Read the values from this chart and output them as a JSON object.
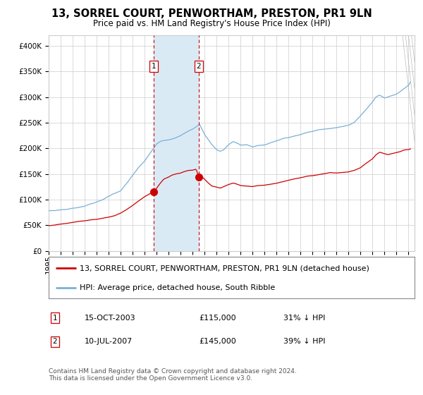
{
  "title": "13, SORREL COURT, PENWORTHAM, PRESTON, PR1 9LN",
  "subtitle": "Price paid vs. HM Land Registry's House Price Index (HPI)",
  "legend_red": "13, SORREL COURT, PENWORTHAM, PRESTON, PR1 9LN (detached house)",
  "legend_blue": "HPI: Average price, detached house, South Ribble",
  "transaction1_price": 115000,
  "transaction1_note": "15-OCT-2003",
  "transaction1_pct": "31% ↓ HPI",
  "transaction2_price": 145000,
  "transaction2_note": "10-JUL-2007",
  "transaction2_pct": "39% ↓ HPI",
  "red_color": "#cc0000",
  "blue_color": "#7ab0d4",
  "shading_color": "#daeaf5",
  "grid_color": "#cccccc",
  "bg_color": "#ffffff",
  "ylim": [
    0,
    420000
  ],
  "yticks": [
    0,
    50000,
    100000,
    150000,
    200000,
    250000,
    300000,
    350000,
    400000
  ],
  "footnote": "Contains HM Land Registry data © Crown copyright and database right 2024.\nThis data is licensed under the Open Government Licence v3.0.",
  "title_fontsize": 10.5,
  "subtitle_fontsize": 8.5,
  "tick_fontsize": 7.5,
  "legend_fontsize": 8,
  "footnote_fontsize": 6.5,
  "t1_year": 2003,
  "t1_month": 10,
  "t2_year": 2007,
  "t2_month": 7,
  "hpi_keypoints": [
    [
      1995.0,
      78000
    ],
    [
      1995.5,
      78500
    ],
    [
      1996.0,
      80000
    ],
    [
      1996.5,
      81000
    ],
    [
      1997.0,
      83000
    ],
    [
      1997.5,
      85000
    ],
    [
      1998.0,
      88000
    ],
    [
      1998.5,
      92000
    ],
    [
      1999.0,
      96000
    ],
    [
      1999.5,
      100000
    ],
    [
      2000.0,
      107000
    ],
    [
      2000.5,
      113000
    ],
    [
      2001.0,
      118000
    ],
    [
      2001.5,
      132000
    ],
    [
      2002.0,
      148000
    ],
    [
      2002.5,
      163000
    ],
    [
      2003.0,
      175000
    ],
    [
      2003.5,
      192000
    ],
    [
      2004.0,
      208000
    ],
    [
      2004.3,
      213000
    ],
    [
      2004.6,
      215000
    ],
    [
      2005.0,
      216000
    ],
    [
      2005.5,
      219000
    ],
    [
      2006.0,
      224000
    ],
    [
      2006.5,
      232000
    ],
    [
      2007.0,
      238000
    ],
    [
      2007.3,
      243000
    ],
    [
      2007.58,
      248000
    ],
    [
      2007.75,
      240000
    ],
    [
      2008.0,
      228000
    ],
    [
      2008.3,
      218000
    ],
    [
      2008.6,
      208000
    ],
    [
      2009.0,
      198000
    ],
    [
      2009.3,
      195000
    ],
    [
      2009.6,
      198000
    ],
    [
      2010.0,
      208000
    ],
    [
      2010.4,
      214000
    ],
    [
      2010.8,
      210000
    ],
    [
      2011.0,
      207000
    ],
    [
      2011.5,
      208000
    ],
    [
      2012.0,
      204000
    ],
    [
      2012.5,
      207000
    ],
    [
      2013.0,
      208000
    ],
    [
      2013.5,
      212000
    ],
    [
      2014.0,
      216000
    ],
    [
      2014.5,
      220000
    ],
    [
      2015.0,
      222000
    ],
    [
      2015.5,
      225000
    ],
    [
      2016.0,
      228000
    ],
    [
      2016.5,
      232000
    ],
    [
      2017.0,
      234000
    ],
    [
      2017.5,
      237000
    ],
    [
      2018.0,
      238000
    ],
    [
      2018.5,
      240000
    ],
    [
      2019.0,
      242000
    ],
    [
      2019.5,
      244000
    ],
    [
      2020.0,
      246000
    ],
    [
      2020.5,
      252000
    ],
    [
      2021.0,
      265000
    ],
    [
      2021.5,
      278000
    ],
    [
      2022.0,
      292000
    ],
    [
      2022.3,
      302000
    ],
    [
      2022.6,
      305000
    ],
    [
      2023.0,
      300000
    ],
    [
      2023.3,
      302000
    ],
    [
      2023.6,
      305000
    ],
    [
      2024.0,
      308000
    ],
    [
      2024.3,
      312000
    ],
    [
      2024.6,
      318000
    ],
    [
      2025.0,
      325000
    ],
    [
      2025.25,
      335000
    ]
  ],
  "red_keypoints": [
    [
      1995.0,
      49000
    ],
    [
      1995.5,
      50000
    ],
    [
      1996.0,
      52000
    ],
    [
      1996.5,
      53000
    ],
    [
      1997.0,
      55000
    ],
    [
      1997.5,
      57000
    ],
    [
      1998.0,
      58000
    ],
    [
      1998.5,
      60000
    ],
    [
      1999.0,
      61000
    ],
    [
      1999.5,
      63000
    ],
    [
      2000.0,
      65000
    ],
    [
      2000.5,
      68000
    ],
    [
      2001.0,
      73000
    ],
    [
      2001.5,
      80000
    ],
    [
      2002.0,
      88000
    ],
    [
      2002.5,
      97000
    ],
    [
      2003.0,
      105000
    ],
    [
      2003.5,
      112000
    ],
    [
      2003.79,
      115000
    ],
    [
      2004.0,
      122000
    ],
    [
      2004.3,
      132000
    ],
    [
      2004.6,
      140000
    ],
    [
      2005.0,
      144000
    ],
    [
      2005.3,
      148000
    ],
    [
      2005.6,
      150000
    ],
    [
      2006.0,
      152000
    ],
    [
      2006.3,
      155000
    ],
    [
      2006.6,
      157000
    ],
    [
      2007.0,
      158000
    ],
    [
      2007.3,
      160000
    ],
    [
      2007.5,
      145000
    ],
    [
      2007.65,
      148000
    ],
    [
      2007.8,
      145000
    ],
    [
      2008.0,
      140000
    ],
    [
      2008.3,
      133000
    ],
    [
      2008.6,
      127000
    ],
    [
      2009.0,
      125000
    ],
    [
      2009.3,
      123000
    ],
    [
      2009.6,
      126000
    ],
    [
      2010.0,
      130000
    ],
    [
      2010.4,
      133000
    ],
    [
      2010.8,
      130000
    ],
    [
      2011.0,
      128000
    ],
    [
      2011.5,
      127000
    ],
    [
      2012.0,
      126000
    ],
    [
      2012.5,
      128000
    ],
    [
      2013.0,
      129000
    ],
    [
      2013.5,
      131000
    ],
    [
      2014.0,
      133000
    ],
    [
      2014.5,
      136000
    ],
    [
      2015.0,
      139000
    ],
    [
      2015.5,
      142000
    ],
    [
      2016.0,
      144000
    ],
    [
      2016.5,
      147000
    ],
    [
      2017.0,
      148000
    ],
    [
      2017.5,
      150000
    ],
    [
      2018.0,
      152000
    ],
    [
      2018.5,
      154000
    ],
    [
      2019.0,
      153000
    ],
    [
      2019.5,
      154000
    ],
    [
      2020.0,
      155000
    ],
    [
      2020.5,
      158000
    ],
    [
      2021.0,
      163000
    ],
    [
      2021.5,
      172000
    ],
    [
      2022.0,
      180000
    ],
    [
      2022.3,
      188000
    ],
    [
      2022.6,
      193000
    ],
    [
      2023.0,
      190000
    ],
    [
      2023.3,
      188000
    ],
    [
      2023.6,
      190000
    ],
    [
      2024.0,
      192000
    ],
    [
      2024.3,
      194000
    ],
    [
      2024.6,
      197000
    ],
    [
      2025.0,
      198000
    ],
    [
      2025.25,
      200000
    ]
  ]
}
